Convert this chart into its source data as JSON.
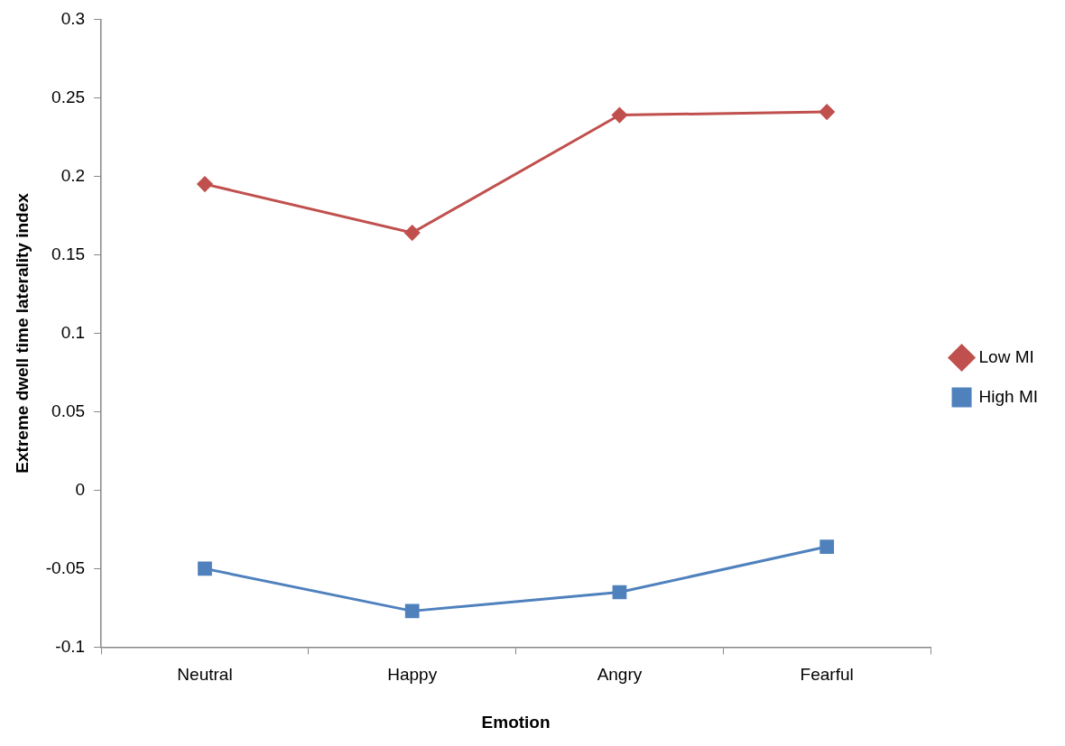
{
  "chart_data": {
    "type": "line",
    "xlabel": "Emotion",
    "ylabel": "Extreme dwell time laterality index",
    "categories": [
      "Neutral",
      "Happy",
      "Angry",
      "Fearful"
    ],
    "series": [
      {
        "name": "Low MI",
        "color": "#c0504d",
        "marker": "diamond",
        "values": [
          0.195,
          0.164,
          0.239,
          0.241
        ]
      },
      {
        "name": "High MI",
        "color": "#4f81bd",
        "marker": "square",
        "values": [
          -0.05,
          -0.077,
          -0.065,
          -0.036
        ]
      }
    ],
    "ylim": [
      -0.1,
      0.3
    ],
    "yticks": [
      -0.1,
      -0.05,
      0,
      0.05,
      0.1,
      0.15,
      0.2,
      0.25,
      0.3
    ],
    "grid": false,
    "legend": "right",
    "line_style": "solid"
  }
}
